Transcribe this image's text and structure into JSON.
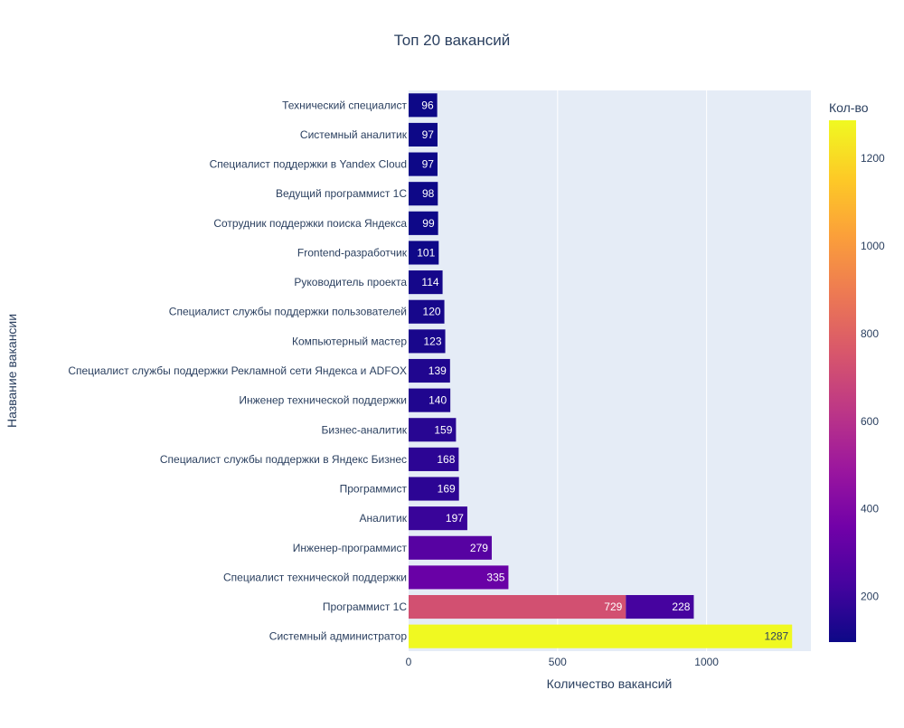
{
  "chart_data": {
    "type": "bar",
    "orientation": "horizontal",
    "barmode": "stack",
    "title": "Топ 20 вакансий",
    "xlabel": "Количество вакансий",
    "ylabel": "Название вакансии",
    "xlim": [
      0,
      1350
    ],
    "x_ticks": [
      0,
      500,
      1000
    ],
    "grid": true,
    "colorbar": {
      "title": "Кол-во",
      "range": [
        96,
        1287
      ],
      "ticks": [
        200,
        400,
        600,
        800,
        1000,
        1200
      ],
      "colorscale": [
        "#0d0887",
        "#46039f",
        "#7201a8",
        "#9c179e",
        "#bd3786",
        "#d8576b",
        "#ed7953",
        "#fb9f3a",
        "#fdca26",
        "#f0f921"
      ]
    },
    "bars": [
      {
        "category": "Технический специалист",
        "value": 96
      },
      {
        "category": "Системный аналитик",
        "value": 97
      },
      {
        "category": "Специалист поддержки в Yandex Cloud",
        "value": 97
      },
      {
        "category": "Ведущий программист 1С",
        "value": 98
      },
      {
        "category": "Сотрудник поддержки поиска Яндекса",
        "value": 99
      },
      {
        "category": "Frontend-разработчик",
        "value": 101
      },
      {
        "category": "Руководитель проекта",
        "value": 114
      },
      {
        "category": "Специалист службы поддержки пользователей",
        "value": 120
      },
      {
        "category": "Компьютерный мастер",
        "value": 123
      },
      {
        "category": "Специалист службы поддержки Рекламной сети Яндекса и ADFOX",
        "value": 139
      },
      {
        "category": "Инженер технической поддержки",
        "value": 140
      },
      {
        "category": "Бизнес-аналитик",
        "value": 159
      },
      {
        "category": "Специалист службы поддержки в Яндекс Бизнес",
        "value": 168
      },
      {
        "category": "Программист",
        "value": 169
      },
      {
        "category": "Аналитик",
        "value": 197
      },
      {
        "category": "Инженер-программист",
        "value": 279
      },
      {
        "category": "Специалист технической поддержки",
        "value": 335
      },
      {
        "category": "Программист 1С",
        "value": 729
      },
      {
        "category": "Программист 1С",
        "value": 228
      },
      {
        "category": "Системный администратор",
        "value": 1287
      }
    ]
  }
}
